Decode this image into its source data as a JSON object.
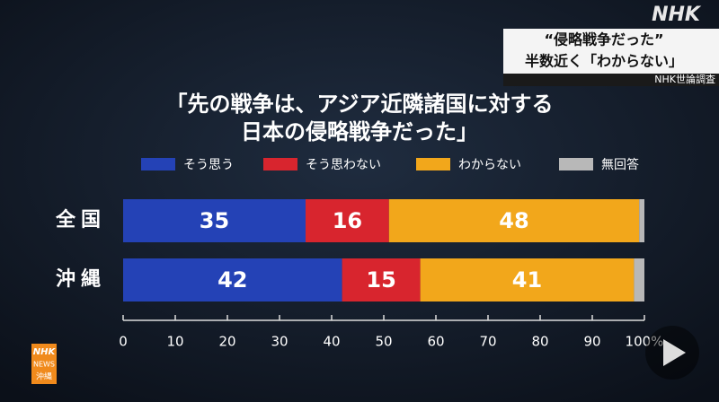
{
  "chart_data": {
    "type": "stacked-barh",
    "title": [
      "「先の戦争は、アジア近隣諸国に対する",
      "日本の侵略戦争だった」"
    ],
    "categories": [
      "全国",
      "沖縄"
    ],
    "series": [
      {
        "name": "そう思う",
        "color": "#2442b6",
        "values": [
          35,
          42
        ]
      },
      {
        "name": "そう思わない",
        "color": "#d8252e",
        "values": [
          16,
          15
        ]
      },
      {
        "name": "わからない",
        "color": "#f2a71b",
        "values": [
          48,
          41
        ]
      },
      {
        "name": "無回答",
        "color": "#b8b8b8",
        "values": [
          1,
          2
        ]
      }
    ],
    "xlim": [
      0,
      100
    ],
    "xticks": [
      0,
      10,
      20,
      30,
      40,
      50,
      60,
      70,
      80,
      90,
      {
        "value": 100,
        "label": "100%"
      }
    ]
  },
  "screen": {
    "logo": "NHK",
    "caption": [
      "“侵略戦争だった”",
      "半数近く「わからない」"
    ],
    "source": "NHK世論調査",
    "corner_logo": [
      "NHK",
      "NEWS",
      "沖縄"
    ]
  }
}
